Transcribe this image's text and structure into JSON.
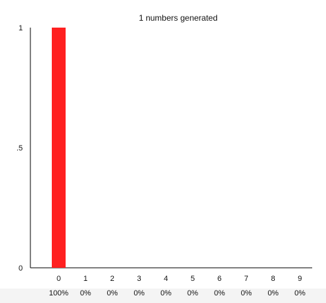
{
  "chart_data": {
    "type": "bar",
    "title": "1 numbers generated",
    "categories": [
      "0",
      "1",
      "2",
      "3",
      "4",
      "5",
      "6",
      "7",
      "8",
      "9"
    ],
    "values": [
      1,
      0,
      0,
      0,
      0,
      0,
      0,
      0,
      0,
      0
    ],
    "percent_labels": [
      "100%",
      "0%",
      "0%",
      "0%",
      "0%",
      "0%",
      "0%",
      "0%",
      "0%",
      "0%"
    ],
    "ylim": [
      0,
      1
    ],
    "y_ticks": [
      {
        "value": 0,
        "label": "0"
      },
      {
        "value": 0.5,
        "label": ".5"
      },
      {
        "value": 1,
        "label": "1"
      }
    ],
    "bar_color": "#ff2020",
    "xlabel": "",
    "ylabel": "",
    "grid": false
  }
}
